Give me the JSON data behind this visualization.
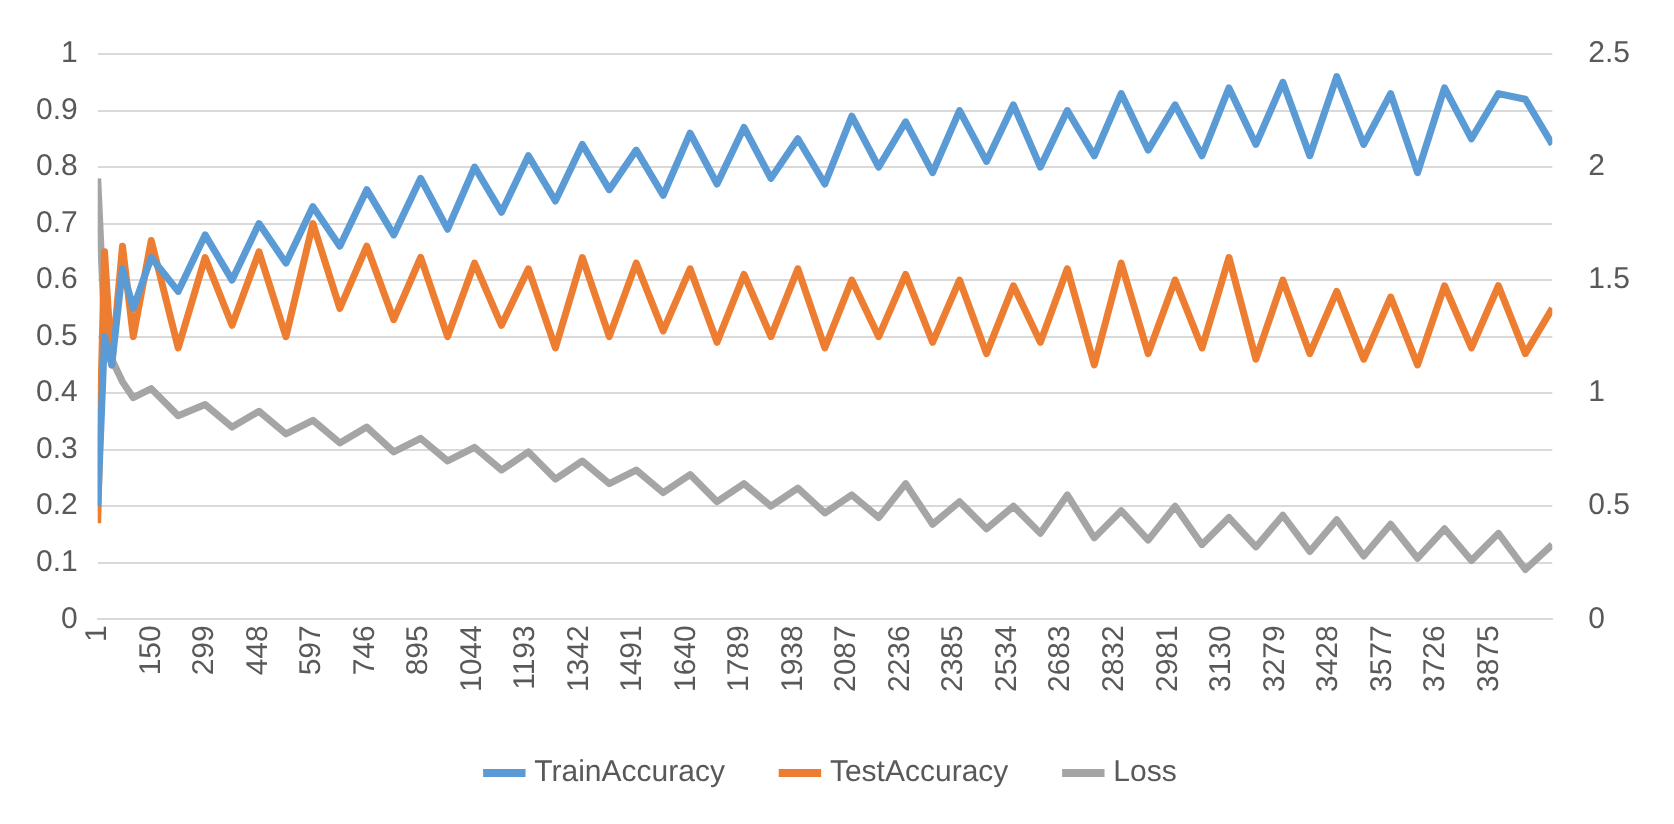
{
  "chart_data": {
    "type": "line",
    "x": [
      1,
      20,
      40,
      70,
      100,
      150,
      225,
      300,
      375,
      450,
      525,
      600,
      675,
      750,
      825,
      900,
      975,
      1050,
      1125,
      1200,
      1275,
      1350,
      1425,
      1500,
      1575,
      1650,
      1725,
      1800,
      1875,
      1950,
      2025,
      2100,
      2175,
      2250,
      2325,
      2400,
      2475,
      2550,
      2625,
      2700,
      2775,
      2850,
      2925,
      3000,
      3075,
      3150,
      3225,
      3300,
      3375,
      3450,
      3525,
      3600,
      3675,
      3750,
      3825,
      3900,
      3975,
      4050
    ],
    "series": [
      {
        "name": "TrainAccuracy",
        "color": "#5b9bd5",
        "values": [
          0.2,
          0.5,
          0.45,
          0.62,
          0.55,
          0.64,
          0.58,
          0.68,
          0.6,
          0.7,
          0.63,
          0.73,
          0.66,
          0.76,
          0.68,
          0.78,
          0.69,
          0.8,
          0.72,
          0.82,
          0.74,
          0.84,
          0.76,
          0.83,
          0.75,
          0.86,
          0.77,
          0.87,
          0.78,
          0.85,
          0.77,
          0.89,
          0.8,
          0.88,
          0.79,
          0.9,
          0.81,
          0.91,
          0.8,
          0.9,
          0.82,
          0.93,
          0.83,
          0.91,
          0.82,
          0.94,
          0.84,
          0.95,
          0.82,
          0.96,
          0.84,
          0.93,
          0.79,
          0.94,
          0.85,
          0.93,
          0.92,
          0.84
        ]
      },
      {
        "name": "TestAccuracy",
        "color": "#ed7d31",
        "values": [
          0.17,
          0.65,
          0.45,
          0.66,
          0.5,
          0.67,
          0.48,
          0.64,
          0.52,
          0.65,
          0.5,
          0.7,
          0.55,
          0.66,
          0.53,
          0.64,
          0.5,
          0.63,
          0.52,
          0.62,
          0.48,
          0.64,
          0.5,
          0.63,
          0.51,
          0.62,
          0.49,
          0.61,
          0.5,
          0.62,
          0.48,
          0.6,
          0.5,
          0.61,
          0.49,
          0.6,
          0.47,
          0.59,
          0.49,
          0.62,
          0.45,
          0.63,
          0.47,
          0.6,
          0.48,
          0.64,
          0.46,
          0.6,
          0.47,
          0.58,
          0.46,
          0.57,
          0.45,
          0.59,
          0.48,
          0.59,
          0.47,
          0.55
        ]
      },
      {
        "name": "Loss",
        "color": "#a5a5a5",
        "axis": "y2",
        "values": [
          1.95,
          1.3,
          1.15,
          1.05,
          0.98,
          1.02,
          0.9,
          0.95,
          0.85,
          0.92,
          0.82,
          0.88,
          0.78,
          0.85,
          0.74,
          0.8,
          0.7,
          0.76,
          0.66,
          0.74,
          0.62,
          0.7,
          0.6,
          0.66,
          0.56,
          0.64,
          0.52,
          0.6,
          0.5,
          0.58,
          0.47,
          0.55,
          0.45,
          0.6,
          0.42,
          0.52,
          0.4,
          0.5,
          0.38,
          0.55,
          0.36,
          0.48,
          0.35,
          0.5,
          0.33,
          0.45,
          0.32,
          0.46,
          0.3,
          0.44,
          0.28,
          0.42,
          0.27,
          0.4,
          0.26,
          0.38,
          0.22,
          0.33
        ]
      }
    ],
    "xlim": [
      1,
      4050
    ],
    "xticks": [
      1,
      150,
      299,
      448,
      597,
      746,
      895,
      1044,
      1193,
      1342,
      1491,
      1640,
      1789,
      1938,
      2087,
      2236,
      2385,
      2534,
      2683,
      2832,
      2981,
      3130,
      3279,
      3428,
      3577,
      3726,
      3875
    ],
    "ylim": [
      0,
      1
    ],
    "yticks": [
      0,
      0.1,
      0.2,
      0.3,
      0.4,
      0.5,
      0.6,
      0.7,
      0.8,
      0.9,
      1
    ],
    "y2lim": [
      0,
      2.5
    ],
    "y2ticks": [
      0,
      0.5,
      1,
      1.5,
      2,
      2.5
    ],
    "grid": "y",
    "legend": "bottom",
    "marker": "none",
    "line_style": "solid"
  }
}
